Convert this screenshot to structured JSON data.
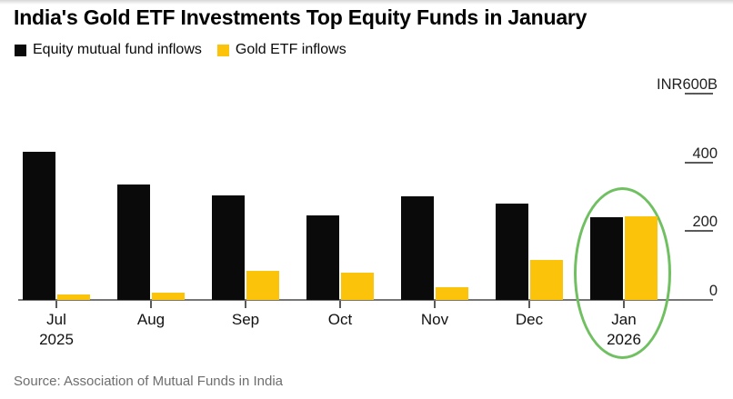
{
  "page": {
    "title": "India's Gold ETF Investments Top Equity Funds in January",
    "source": "Source: Association of Mutual Funds in India"
  },
  "legend": {
    "items": [
      {
        "label": "Equity mutual fund inflows",
        "color": "#0a0a0a"
      },
      {
        "label": "Gold ETF inflows",
        "color": "#fcc30b"
      }
    ]
  },
  "chart_data": {
    "type": "bar",
    "title": "India's Gold ETF Investments Top Equity Funds in January",
    "unit": "INR billions",
    "categories": [
      "Jul 2025",
      "Aug",
      "Sep",
      "Oct",
      "Nov",
      "Dec",
      "Jan 2026"
    ],
    "series": [
      {
        "name": "Equity mutual fund inflows",
        "color": "#0a0a0a",
        "values": [
          430,
          335,
          305,
          245,
          300,
          280,
          240
        ]
      },
      {
        "name": "Gold ETF inflows",
        "color": "#fcc30b",
        "values": [
          15,
          20,
          85,
          80,
          38,
          115,
          243
        ]
      }
    ],
    "ylim": [
      0,
      600
    ],
    "y_axis": [
      {
        "value": 600,
        "label": "INR600B",
        "tick": true
      },
      {
        "value": 400,
        "label": "400",
        "tick": true
      },
      {
        "value": 200,
        "label": "200",
        "tick": true
      },
      {
        "value": 0,
        "label": "0",
        "tick": false
      }
    ],
    "grid": false,
    "legend_position": "top-left",
    "annotation": {
      "shape": "ellipse",
      "highlights": "Jan 2026",
      "color": "#70c061"
    }
  }
}
